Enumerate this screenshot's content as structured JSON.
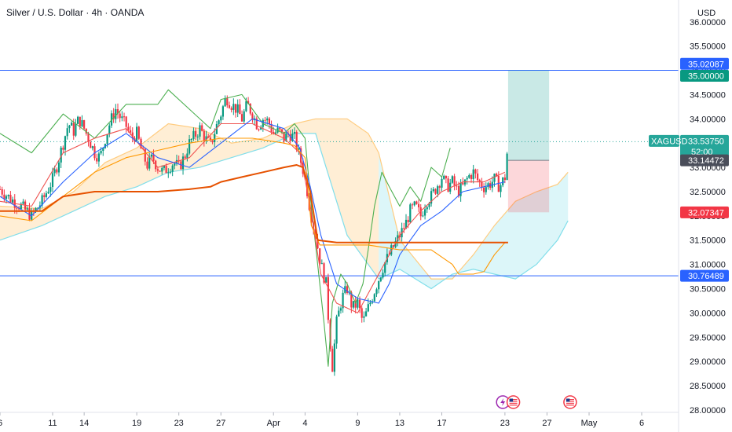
{
  "header": {
    "title": "Silver / U.S. Dollar · 4h · OANDA",
    "currency": "USD"
  },
  "chart_data": {
    "type": "candlestick",
    "symbol": "XAGUSD",
    "ylim": [
      27.95,
      36.45
    ],
    "yticks": [
      "36.00000",
      "35.50000",
      "35.00000",
      "34.50000",
      "34.00000",
      "33.50000",
      "33.00000",
      "32.50000",
      "32.00000",
      "31.50000",
      "31.00000",
      "30.50000",
      "30.00000",
      "29.50000",
      "29.00000",
      "28.50000",
      "28.00000"
    ],
    "xticks": [
      {
        "label": "6",
        "day": 6
      },
      {
        "label": "11",
        "day": 11
      },
      {
        "label": "14",
        "day": 14
      },
      {
        "label": "19",
        "day": 19
      },
      {
        "label": "23",
        "day": 23
      },
      {
        "label": "27",
        "day": 27
      },
      {
        "label": "Apr",
        "day": 32
      },
      {
        "label": "4",
        "day": 35
      },
      {
        "label": "9",
        "day": 40
      },
      {
        "label": "13",
        "day": 44
      },
      {
        "label": "17",
        "day": 48
      },
      {
        "label": "23",
        "day": 54
      },
      {
        "label": "27",
        "day": 58
      },
      {
        "label": "May",
        "day": 62
      },
      {
        "label": "6",
        "day": 67
      }
    ],
    "close_path": [
      [
        6,
        32.55
      ],
      [
        7,
        32.35
      ],
      [
        8,
        32.2
      ],
      [
        9,
        32.0
      ],
      [
        10,
        32.3
      ],
      [
        11,
        32.75
      ],
      [
        11.5,
        33.1
      ],
      [
        12,
        33.5
      ],
      [
        12.5,
        33.9
      ],
      [
        13,
        33.75
      ],
      [
        13.5,
        34.0
      ],
      [
        14,
        33.8
      ],
      [
        14.5,
        33.55
      ],
      [
        15,
        33.3
      ],
      [
        15.5,
        33.2
      ],
      [
        16,
        33.6
      ],
      [
        16.5,
        33.95
      ],
      [
        17,
        34.2
      ],
      [
        17.5,
        34.0
      ],
      [
        18,
        33.85
      ],
      [
        18.5,
        33.6
      ],
      [
        19,
        33.7
      ],
      [
        19.5,
        33.3
      ],
      [
        20,
        33.05
      ],
      [
        20.5,
        33.2
      ],
      [
        21,
        33.0
      ],
      [
        21.5,
        32.9
      ],
      [
        22,
        33.0
      ],
      [
        22.5,
        33.1
      ],
      [
        23,
        33.0
      ],
      [
        23.5,
        33.2
      ],
      [
        24,
        33.5
      ],
      [
        24.5,
        33.65
      ],
      [
        25,
        33.8
      ],
      [
        25.5,
        33.6
      ],
      [
        26,
        33.45
      ],
      [
        26.5,
        33.8
      ],
      [
        27,
        34.1
      ],
      [
        27.5,
        34.45
      ],
      [
        28,
        34.3
      ],
      [
        28.5,
        34.2
      ],
      [
        29,
        34.0
      ],
      [
        29.5,
        34.3
      ],
      [
        30,
        34.1
      ],
      [
        30.5,
        33.85
      ],
      [
        31,
        34.0
      ],
      [
        31.5,
        33.95
      ],
      [
        32,
        33.7
      ],
      [
        32.5,
        33.75
      ],
      [
        33,
        33.6
      ],
      [
        33.5,
        33.7
      ],
      [
        34,
        33.6
      ],
      [
        34.5,
        33.2
      ],
      [
        35,
        32.8
      ],
      [
        35.5,
        32.1
      ],
      [
        36,
        31.6
      ],
      [
        36.5,
        31.0
      ],
      [
        37,
        30.6
      ],
      [
        37.3,
        29.6
      ],
      [
        37.6,
        28.9
      ],
      [
        38,
        29.8
      ],
      [
        38.5,
        30.3
      ],
      [
        39,
        30.5
      ],
      [
        39.5,
        30.1
      ],
      [
        40,
        30.2
      ],
      [
        40.5,
        29.8
      ],
      [
        41,
        30.1
      ],
      [
        41.5,
        30.4
      ],
      [
        42,
        30.7
      ],
      [
        42.5,
        31.0
      ],
      [
        43,
        31.2
      ],
      [
        43.5,
        31.4
      ],
      [
        44,
        31.6
      ],
      [
        44.5,
        31.8
      ],
      [
        45,
        32.1
      ],
      [
        45.5,
        32.2
      ],
      [
        46,
        32.0
      ],
      [
        46.5,
        32.3
      ],
      [
        47,
        32.4
      ],
      [
        47.5,
        32.6
      ],
      [
        48,
        32.8
      ],
      [
        48.5,
        32.6
      ],
      [
        49,
        32.7
      ],
      [
        49.5,
        32.5
      ],
      [
        50,
        32.6
      ],
      [
        50.5,
        32.8
      ],
      [
        51,
        32.9
      ],
      [
        51.5,
        32.7
      ],
      [
        52,
        32.6
      ],
      [
        52.5,
        32.65
      ],
      [
        53,
        32.75
      ],
      [
        53.5,
        32.6
      ],
      [
        54,
        32.8
      ],
      [
        54.3,
        33.53
      ]
    ],
    "series": [
      {
        "name": "",
        "color": "#4caf50",
        "points": [
          [
            6,
            33.7
          ],
          [
            9,
            33.3
          ],
          [
            12,
            34.1
          ],
          [
            15,
            33.6
          ],
          [
            18,
            34.3
          ],
          [
            21,
            34.3
          ],
          [
            22,
            34.6
          ],
          [
            24,
            34.2
          ],
          [
            26,
            33.8
          ],
          [
            27,
            34.4
          ],
          [
            29,
            34.5
          ],
          [
            31,
            33.9
          ],
          [
            33,
            33.7
          ],
          [
            34,
            33.9
          ],
          [
            35,
            33.6
          ],
          [
            35.5,
            32.4
          ],
          [
            36,
            31.4
          ],
          [
            36.8,
            29.8
          ],
          [
            37.2,
            28.9
          ],
          [
            37.6,
            30.2
          ],
          [
            38.4,
            30.8
          ],
          [
            39,
            30.6
          ],
          [
            39.8,
            30.2
          ],
          [
            40.5,
            30.6
          ],
          [
            41,
            31.3
          ],
          [
            41.6,
            32.2
          ],
          [
            42.3,
            32.9
          ],
          [
            43,
            32.6
          ],
          [
            44,
            32.2
          ],
          [
            45,
            32.6
          ],
          [
            46,
            32.3
          ],
          [
            47,
            33.0
          ],
          [
            48,
            32.8
          ],
          [
            48.8,
            33.4
          ]
        ]
      },
      {
        "name": "",
        "color": "#ef5350",
        "points": [
          [
            6,
            32.3
          ],
          [
            9,
            32.2
          ],
          [
            12,
            33.3
          ],
          [
            15,
            33.6
          ],
          [
            18,
            33.8
          ],
          [
            21,
            33.0
          ],
          [
            24,
            33.2
          ],
          [
            27,
            33.9
          ],
          [
            30,
            33.9
          ],
          [
            33,
            33.6
          ],
          [
            34.5,
            33.3
          ],
          [
            35.5,
            32.2
          ],
          [
            36.5,
            30.8
          ],
          [
            38,
            30.2
          ],
          [
            40,
            30.0
          ],
          [
            42,
            30.8
          ],
          [
            44,
            31.6
          ],
          [
            46,
            32.1
          ],
          [
            48,
            32.5
          ],
          [
            50,
            32.7
          ],
          [
            52,
            32.7
          ],
          [
            54,
            32.9
          ]
        ]
      },
      {
        "name": "",
        "color": "#2962ff",
        "points": [
          [
            6,
            32.4
          ],
          [
            9,
            32.0
          ],
          [
            12,
            32.7
          ],
          [
            15,
            33.3
          ],
          [
            18,
            33.7
          ],
          [
            21,
            33.2
          ],
          [
            24,
            33.0
          ],
          [
            27,
            33.5
          ],
          [
            30,
            34.0
          ],
          [
            33,
            33.8
          ],
          [
            34.5,
            33.4
          ],
          [
            35.5,
            32.6
          ],
          [
            36.5,
            31.6
          ],
          [
            38,
            30.6
          ],
          [
            40,
            30.3
          ],
          [
            42,
            30.2
          ],
          [
            43,
            30.6
          ],
          [
            44,
            31.2
          ],
          [
            46,
            31.8
          ],
          [
            48,
            32.1
          ],
          [
            50,
            32.5
          ],
          [
            52,
            32.6
          ],
          [
            54,
            32.7
          ]
        ]
      },
      {
        "name": "",
        "color": "#ff9800",
        "points": [
          [
            6,
            32.0
          ],
          [
            9,
            31.9
          ],
          [
            12,
            32.4
          ],
          [
            15,
            32.9
          ],
          [
            18,
            33.2
          ],
          [
            21,
            33.35
          ],
          [
            24,
            33.5
          ],
          [
            27,
            33.6
          ],
          [
            30,
            33.6
          ],
          [
            33,
            33.5
          ],
          [
            34,
            33.45
          ],
          [
            35,
            33.2
          ],
          [
            35.6,
            31.8
          ],
          [
            36.4,
            31.4
          ],
          [
            38,
            31.4
          ],
          [
            41,
            31.4
          ],
          [
            44,
            31.3
          ],
          [
            46,
            31.3
          ],
          [
            47,
            31.3
          ],
          [
            49,
            31.0
          ],
          [
            49.6,
            30.8
          ],
          [
            50,
            30.8
          ],
          [
            51,
            30.8
          ],
          [
            52,
            30.85
          ],
          [
            53,
            31.2
          ],
          [
            54,
            31.45
          ]
        ]
      },
      {
        "name": "",
        "color": "#e65100",
        "points": [
          [
            6,
            32.1
          ],
          [
            10,
            32.1
          ],
          [
            12,
            32.4
          ],
          [
            15,
            32.5
          ],
          [
            18,
            32.5
          ],
          [
            21,
            32.5
          ],
          [
            24,
            32.55
          ],
          [
            26,
            32.6
          ],
          [
            27,
            32.7
          ],
          [
            29,
            32.8
          ],
          [
            31,
            32.9
          ],
          [
            33,
            33.0
          ],
          [
            34.2,
            33.05
          ],
          [
            34.8,
            33.0
          ],
          [
            35.5,
            32.5
          ],
          [
            36.2,
            31.5
          ],
          [
            38,
            31.45
          ],
          [
            44,
            31.45
          ],
          [
            50,
            31.45
          ],
          [
            54.3,
            31.45
          ]
        ]
      }
    ],
    "cloud": {
      "upper": [
        [
          6,
          32.2
        ],
        [
          10,
          32.15
        ],
        [
          13,
          32.5
        ],
        [
          16,
          33.1
        ],
        [
          19,
          33.4
        ],
        [
          22,
          33.9
        ],
        [
          25,
          33.8
        ],
        [
          28,
          33.5
        ],
        [
          31,
          33.6
        ],
        [
          34,
          33.9
        ],
        [
          36,
          34.0
        ],
        [
          39,
          34.0
        ],
        [
          41,
          33.7
        ],
        [
          42,
          33.3
        ],
        [
          44,
          31.5
        ],
        [
          47,
          30.7
        ],
        [
          49,
          30.7
        ],
        [
          51,
          31.2
        ],
        [
          53,
          31.8
        ],
        [
          55,
          32.3
        ],
        [
          57,
          32.5
        ],
        [
          59,
          32.65
        ],
        [
          60,
          32.9
        ]
      ],
      "lower": [
        [
          6,
          31.5
        ],
        [
          10,
          31.8
        ],
        [
          13,
          32.1
        ],
        [
          16,
          32.4
        ],
        [
          19,
          32.6
        ],
        [
          22,
          32.9
        ],
        [
          25,
          33.0
        ],
        [
          28,
          33.2
        ],
        [
          31,
          33.4
        ],
        [
          34,
          33.7
        ],
        [
          36,
          33.7
        ],
        [
          39,
          31.6
        ],
        [
          41,
          31.0
        ],
        [
          42,
          30.7
        ],
        [
          44,
          30.9
        ],
        [
          47,
          30.5
        ],
        [
          49,
          30.8
        ],
        [
          51,
          30.9
        ],
        [
          53,
          30.8
        ],
        [
          55,
          30.7
        ],
        [
          57,
          31.0
        ],
        [
          59,
          31.5
        ],
        [
          60,
          31.9
        ]
      ]
    },
    "levels": [
      {
        "value": 35.0,
        "color": "#2962ff"
      },
      {
        "value": 30.76489,
        "color": "#2962ff"
      }
    ],
    "position_box": {
      "x_start": 54.3,
      "x_end": 58.2,
      "entry": 33.14472,
      "target": 35.0,
      "stop": 32.07347
    },
    "price_tags": [
      {
        "text": "35.02087",
        "value": 35.02087,
        "color": "#2962ff"
      },
      {
        "text": "35.00000",
        "value": 35.0,
        "color": "#089981"
      },
      {
        "text": "33.53750",
        "value": 33.5375,
        "color": "#26a69a",
        "label": "XAGUSD",
        "sub": "52:00"
      },
      {
        "text": "33.14472",
        "value": 33.14472,
        "color": "#4a4e5a"
      },
      {
        "text": "32.07347",
        "value": 32.07347,
        "color": "#f23645"
      },
      {
        "text": "30.76489",
        "value": 30.76489,
        "color": "#2962ff"
      }
    ],
    "event_icons": [
      {
        "day": 53.8,
        "icon": "lightning-icon"
      },
      {
        "day": 54.8,
        "icon": "us-flag-icon"
      },
      {
        "day": 60.2,
        "icon": "us-flag-icon"
      }
    ]
  }
}
